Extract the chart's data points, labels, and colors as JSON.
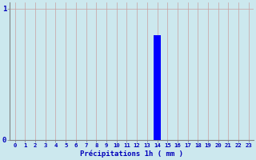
{
  "hours": [
    0,
    1,
    2,
    3,
    4,
    5,
    6,
    7,
    8,
    9,
    10,
    11,
    12,
    13,
    14,
    15,
    16,
    17,
    18,
    19,
    20,
    21,
    22,
    23
  ],
  "values": [
    0,
    0,
    0,
    0,
    0,
    0,
    0,
    0,
    0,
    0,
    0,
    0,
    0,
    0,
    0.8,
    0,
    0,
    0,
    0,
    0,
    0,
    0,
    0,
    0
  ],
  "bar_color": "#0000ff",
  "background_color": "#cce8ee",
  "grid_color_v": "#c8a0a0",
  "grid_color_h": "#b0b0b0",
  "xlabel": "Précipitations 1h ( mm )",
  "xlabel_color": "#0000bb",
  "tick_color": "#0000bb",
  "axis_color": "#808080",
  "ylim": [
    0,
    1.05
  ],
  "xlim": [
    -0.5,
    23.5
  ],
  "yticks": [
    0,
    1
  ],
  "xticks": [
    0,
    1,
    2,
    3,
    4,
    5,
    6,
    7,
    8,
    9,
    10,
    11,
    12,
    13,
    14,
    15,
    16,
    17,
    18,
    19,
    20,
    21,
    22,
    23
  ],
  "bar_width": 0.7,
  "bar_index": 14
}
